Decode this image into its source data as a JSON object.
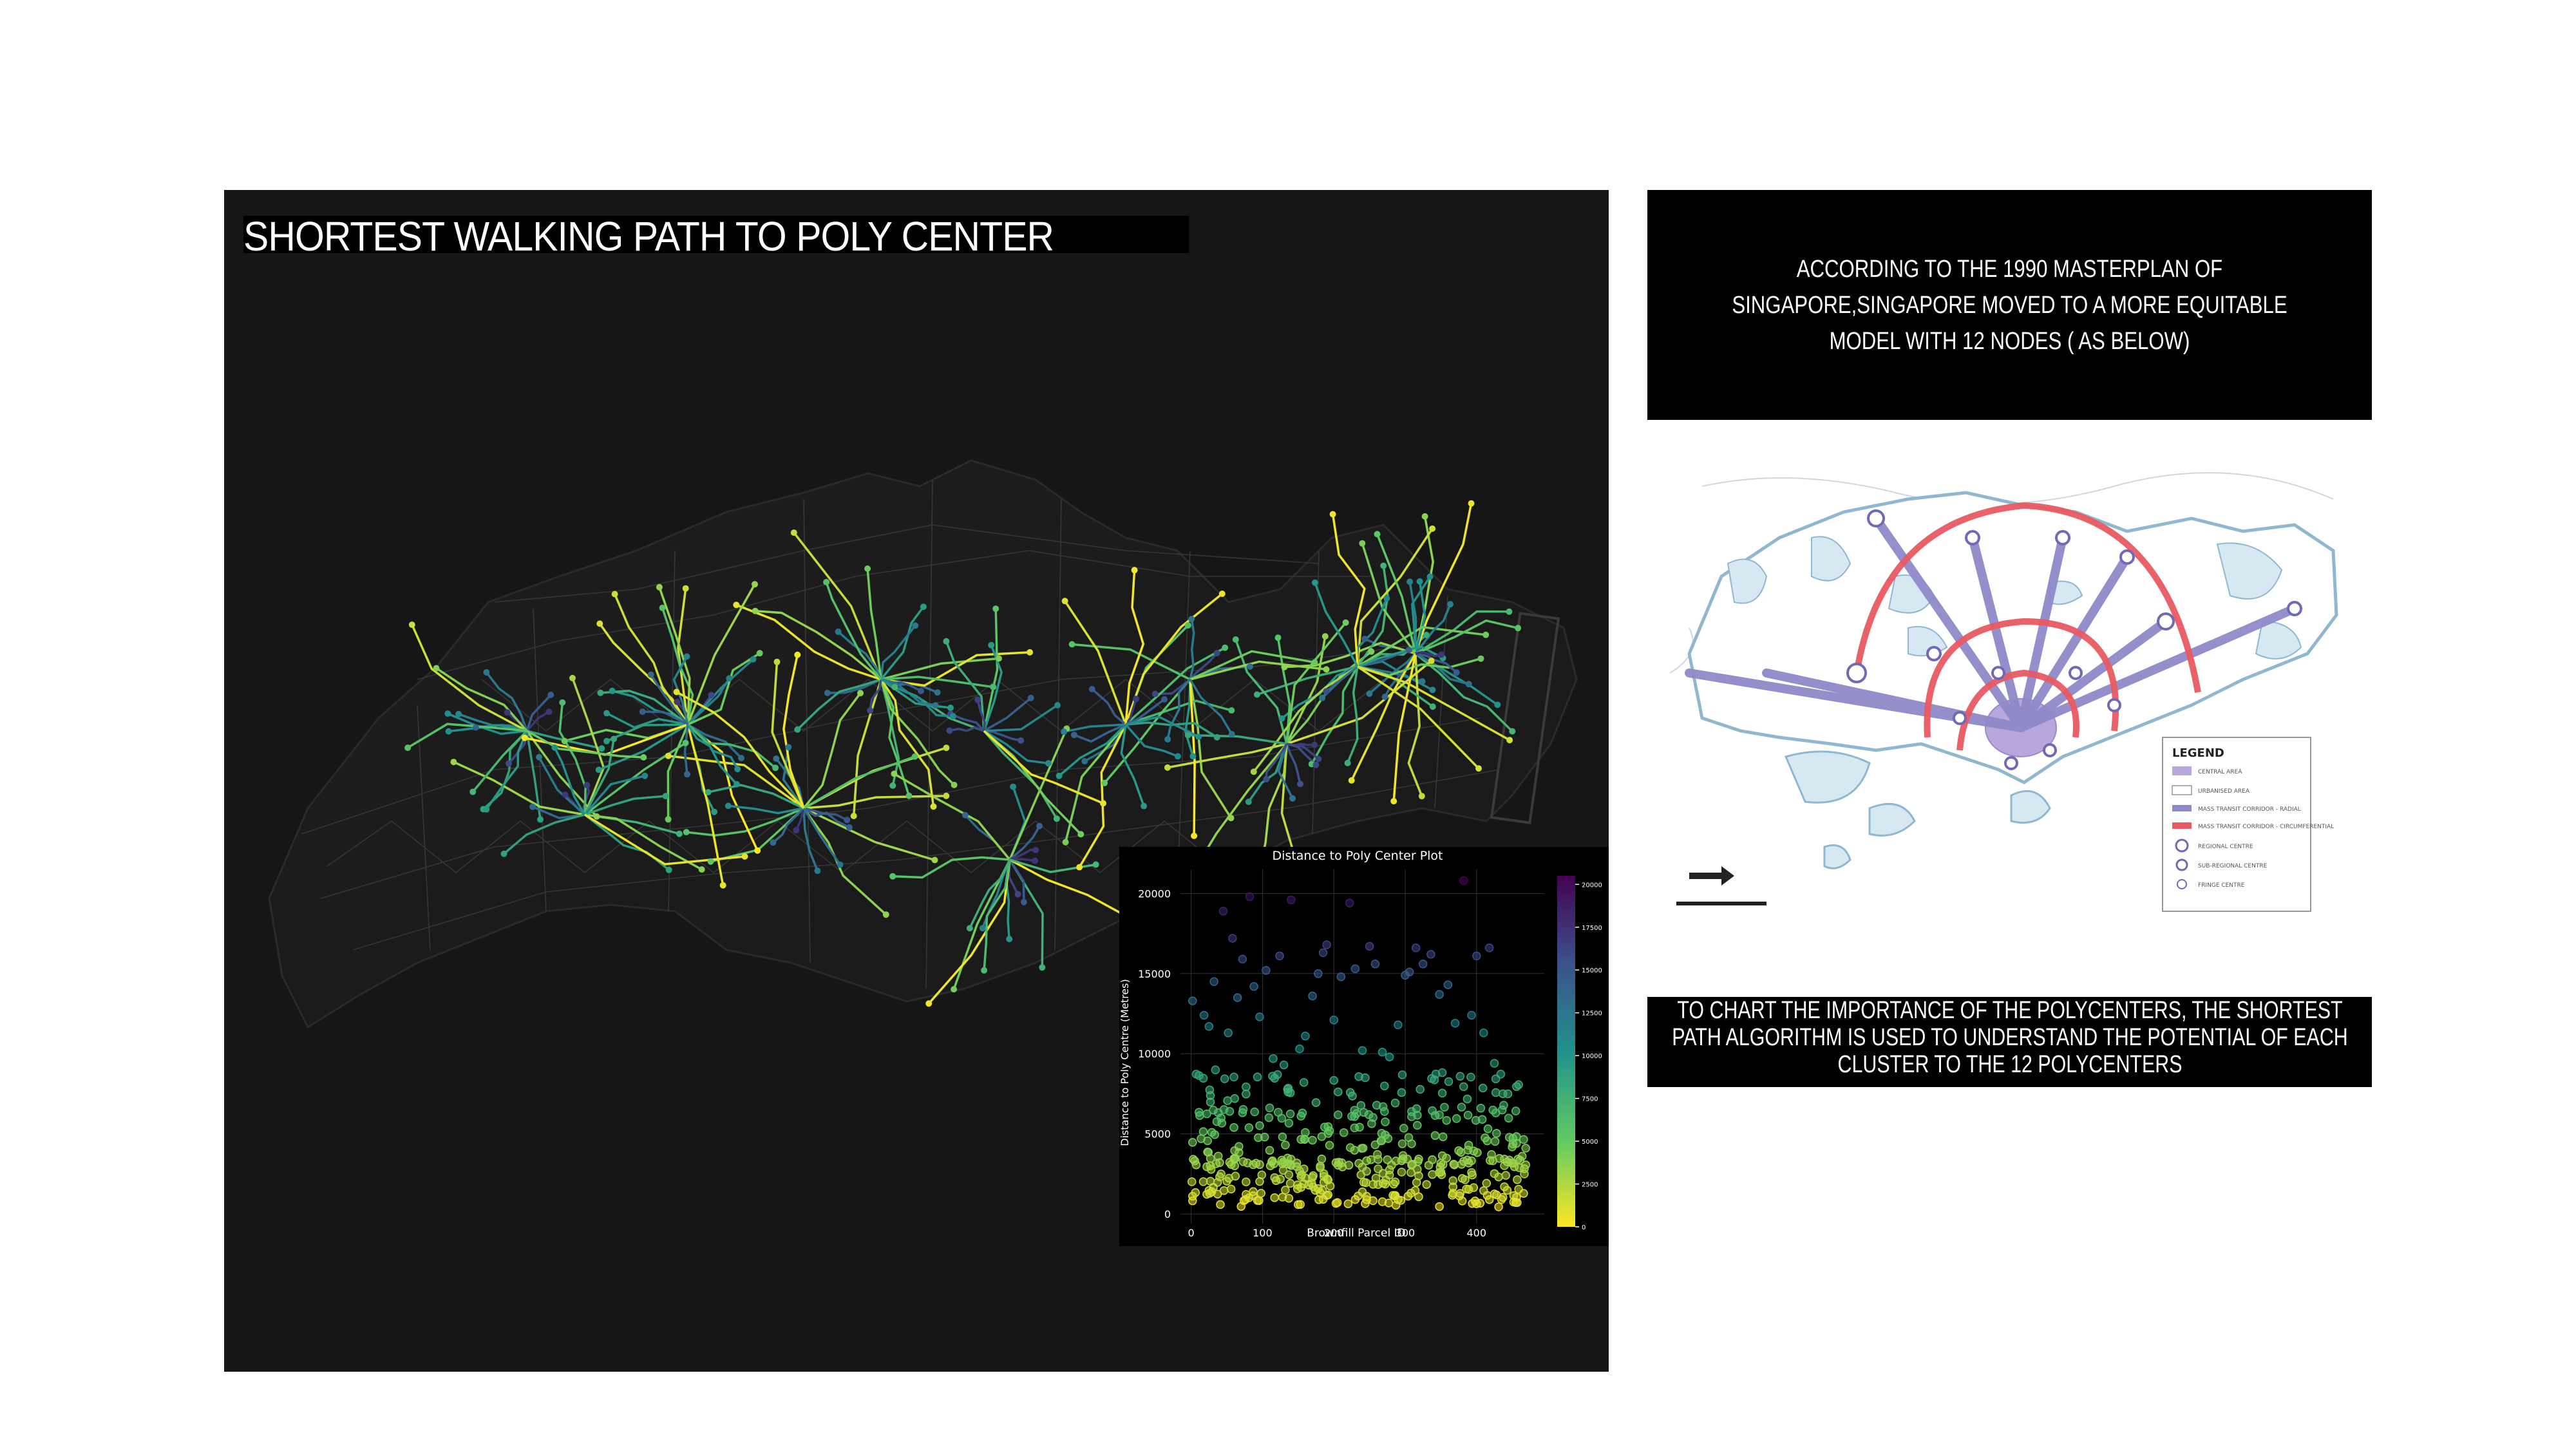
{
  "map_panel": {
    "title": "SHORTEST WALKING PATH TO POLY CENTER"
  },
  "info_top": {
    "text": "ACCORDING TO THE 1990 MASTERPLAN OF SINGAPORE,SINGAPORE MOVED TO A MORE EQUITABLE MODEL WITH 12 NODES ( AS BELOW)"
  },
  "info_bottom": {
    "text": "TO CHART THE IMPORTANCE OF THE POLYCENTERS, THE SHORTEST PATH ALGORITHM IS USED TO UNDERSTAND THE POTENTIAL OF EACH CLUSTER TO THE 12 POLYCENTERS"
  },
  "legacy_map": {
    "legend_title": "LEGEND",
    "legend_items": [
      "CENTRAL AREA",
      "URBANISED AREA",
      "MASS TRANSIT CORRIDOR - RADIAL",
      "MASS TRANSIT CORRIDOR - CIRCUMFERENTIAL",
      "REGIONAL CENTRE",
      "SUB-REGIONAL CENTRE",
      "FRINGE CENTRE"
    ],
    "colors": {
      "water": "#d6e9f2",
      "coast": "#8fb8d0",
      "radial": "#8f89c9",
      "circumferential": "#e85a62",
      "central": "#b9a6dc"
    }
  },
  "chart_data": {
    "type": "scatter",
    "title": "Distance to Poly Center Plot",
    "xlabel": "Brownfill Parcel ID",
    "ylabel": "Distance to Poly Centre (Metres)",
    "xlim": [
      -15,
      495
    ],
    "ylim": [
      -600,
      21500
    ],
    "xticks": [
      0,
      100,
      200,
      300,
      400
    ],
    "yticks": [
      0,
      5000,
      10000,
      15000,
      20000
    ],
    "colorbar_ticks": [
      0,
      2500,
      5000,
      7500,
      10000,
      12500,
      15000,
      17500,
      20000
    ],
    "colormap": "viridis_r",
    "n_points": 480,
    "y_range": [
      0,
      21000
    ],
    "distribution_note_points_above_9000": [
      [
        2,
        13300
      ],
      [
        18,
        12400
      ],
      [
        25,
        11700
      ],
      [
        32,
        14500
      ],
      [
        45,
        18900
      ],
      [
        52,
        11300
      ],
      [
        58,
        17200
      ],
      [
        65,
        13500
      ],
      [
        72,
        15900
      ],
      [
        82,
        19800
      ],
      [
        88,
        14200
      ],
      [
        96,
        12300
      ],
      [
        105,
        15200
      ],
      [
        115,
        9700
      ],
      [
        124,
        16100
      ],
      [
        130,
        9300
      ],
      [
        140,
        19600
      ],
      [
        152,
        10300
      ],
      [
        160,
        11100
      ],
      [
        170,
        13600
      ],
      [
        178,
        15000
      ],
      [
        185,
        16300
      ],
      [
        190,
        16800
      ],
      [
        200,
        12100
      ],
      [
        210,
        14800
      ],
      [
        222,
        19400
      ],
      [
        230,
        15300
      ],
      [
        240,
        10200
      ],
      [
        250,
        16700
      ],
      [
        258,
        15600
      ],
      [
        268,
        10100
      ],
      [
        278,
        9800
      ],
      [
        290,
        11800
      ],
      [
        300,
        14900
      ],
      [
        306,
        15100
      ],
      [
        315,
        16600
      ],
      [
        325,
        15600
      ],
      [
        336,
        16200
      ],
      [
        348,
        13700
      ],
      [
        360,
        14300
      ],
      [
        370,
        11900
      ],
      [
        382,
        20800
      ],
      [
        393,
        12400
      ],
      [
        400,
        16100
      ],
      [
        410,
        11300
      ],
      [
        418,
        16600
      ],
      [
        425,
        9400
      ]
    ]
  }
}
